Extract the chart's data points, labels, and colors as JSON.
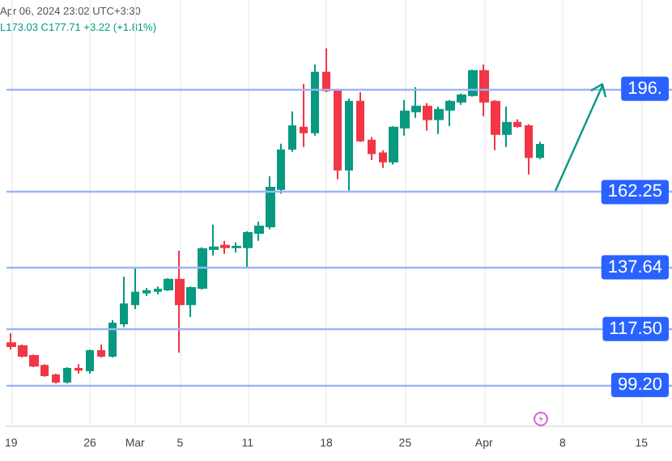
{
  "chart_data": {
    "type": "candlestick",
    "annotations": [
      "Apr 06, 2024 23:02 UTC+3:30",
      "L173.03 C177.71 +3.22 (+1.81%)"
    ],
    "x": [
      "2024-02-19",
      "2024-02-20",
      "2024-02-21",
      "2024-02-22",
      "2024-02-23",
      "2024-02-24",
      "2024-02-25",
      "2024-02-26",
      "2024-02-27",
      "2024-02-28",
      "2024-02-29",
      "2024-03-01",
      "2024-03-02",
      "2024-03-03",
      "2024-03-04",
      "2024-03-05",
      "2024-03-06",
      "2024-03-07",
      "2024-03-08",
      "2024-03-09",
      "2024-03-10",
      "2024-03-11",
      "2024-03-12",
      "2024-03-13",
      "2024-03-14",
      "2024-03-15",
      "2024-03-16",
      "2024-03-17",
      "2024-03-18",
      "2024-03-19",
      "2024-03-20",
      "2024-03-21",
      "2024-03-22",
      "2024-03-23",
      "2024-03-24",
      "2024-03-25",
      "2024-03-26",
      "2024-03-27",
      "2024-03-28",
      "2024-03-29",
      "2024-03-30",
      "2024-03-31",
      "2024-04-01",
      "2024-04-02",
      "2024-04-03",
      "2024-04-04",
      "2024-04-05",
      "2024-04-06"
    ],
    "ohlc": [
      [
        112.9,
        116.1,
        110.8,
        111.9
      ],
      [
        111.9,
        112.4,
        108.2,
        108.7
      ],
      [
        108.7,
        109.2,
        105.0,
        105.5
      ],
      [
        105.5,
        106.0,
        101.9,
        102.4
      ],
      [
        102.4,
        102.9,
        99.7,
        100.3
      ],
      [
        100.3,
        105.0,
        99.7,
        104.5
      ],
      [
        104.5,
        106.0,
        102.9,
        104.2
      ],
      [
        104.0,
        110.8,
        102.9,
        110.3
      ],
      [
        110.3,
        112.4,
        108.2,
        108.7
      ],
      [
        108.7,
        120.4,
        108.2,
        119.3
      ],
      [
        119.3,
        134.6,
        118.2,
        125.6
      ],
      [
        125.6,
        137.3,
        124.0,
        129.4
      ],
      [
        129.4,
        130.9,
        128.3,
        129.9
      ],
      [
        129.9,
        131.4,
        128.8,
        130.4
      ],
      [
        130.4,
        134.1,
        129.9,
        133.6
      ],
      [
        133.6,
        143.1,
        109.8,
        125.6
      ],
      [
        125.6,
        131.4,
        121.4,
        130.9
      ],
      [
        130.9,
        144.2,
        130.4,
        143.6
      ],
      [
        143.6,
        151.6,
        141.5,
        144.2
      ],
      [
        144.7,
        146.3,
        142.0,
        144.2
      ],
      [
        144.2,
        145.8,
        142.5,
        144.4
      ],
      [
        144.2,
        149.4,
        137.3,
        148.9
      ],
      [
        148.9,
        152.6,
        146.3,
        151.0
      ],
      [
        151.0,
        167.4,
        150.0,
        163.7
      ],
      [
        163.2,
        178.0,
        161.7,
        175.9
      ],
      [
        176.4,
        188.6,
        175.4,
        183.8
      ],
      [
        183.3,
        197.6,
        177.0,
        181.7
      ],
      [
        181.7,
        203.9,
        180.7,
        201.3
      ],
      [
        201.3,
        209.2,
        194.9,
        195.5
      ],
      [
        195.5,
        196.0,
        166.4,
        169.6
      ],
      [
        169.6,
        192.8,
        162.7,
        191.8
      ],
      [
        191.8,
        194.9,
        178.6,
        179.1
      ],
      [
        179.1,
        180.2,
        172.7,
        174.9
      ],
      [
        174.9,
        175.9,
        170.1,
        172.2
      ],
      [
        172.2,
        183.8,
        171.2,
        183.3
      ],
      [
        183.3,
        192.3,
        180.7,
        188.6
      ],
      [
        188.6,
        196.5,
        186.5,
        190.2
      ],
      [
        190.2,
        191.3,
        182.3,
        186.0
      ],
      [
        186.0,
        190.2,
        181.2,
        189.1
      ],
      [
        189.1,
        192.3,
        183.8,
        191.8
      ],
      [
        191.8,
        194.4,
        190.7,
        193.9
      ],
      [
        193.9,
        202.3,
        193.4,
        201.8
      ],
      [
        201.8,
        203.9,
        187.0,
        191.8
      ],
      [
        191.8,
        192.3,
        175.9,
        181.2
      ],
      [
        181.2,
        190.2,
        177.0,
        184.9
      ],
      [
        184.9,
        186.0,
        183.3,
        183.8
      ],
      [
        183.8,
        184.4,
        168.0,
        173.7
      ],
      [
        173.7,
        178.6,
        173.03,
        177.71
      ]
    ],
    "xlim": [
      "2024-02-18T14:00",
      "2024-04-17T17:00"
    ],
    "xticks": [
      {
        "value": "2024-02-19",
        "label": "19"
      },
      {
        "value": "2024-02-26",
        "label": "26"
      },
      {
        "value": "2024-03-01",
        "label": "Mar"
      },
      {
        "value": "2024-03-05",
        "label": "5"
      },
      {
        "value": "2024-03-11",
        "label": "11"
      },
      {
        "value": "2024-03-18",
        "label": "18"
      },
      {
        "value": "2024-03-25",
        "label": "25"
      },
      {
        "value": "2024-04-01",
        "label": "Apr"
      },
      {
        "value": "2024-04-08",
        "label": "8"
      },
      {
        "value": "2024-04-15",
        "label": "15"
      }
    ],
    "ylim": [
      86,
      225
    ],
    "tick_labels": "x",
    "grid": "x",
    "ref_lines": [
      {
        "axis": "y",
        "value": 99.2,
        "label": "99.20",
        "color": "#9db4f5"
      },
      {
        "axis": "y",
        "value": 117.5,
        "label": "117.50",
        "color": "#9db4f5"
      },
      {
        "axis": "y",
        "value": 137.64,
        "label": "137.64",
        "color": "#9db4f5"
      },
      {
        "axis": "y",
        "value": 162.25,
        "label": "162.25",
        "color": "#9db4f5"
      },
      {
        "axis": "y",
        "value": 196,
        "label": "196.",
        "color": "#9db4f5"
      }
    ]
  }
}
